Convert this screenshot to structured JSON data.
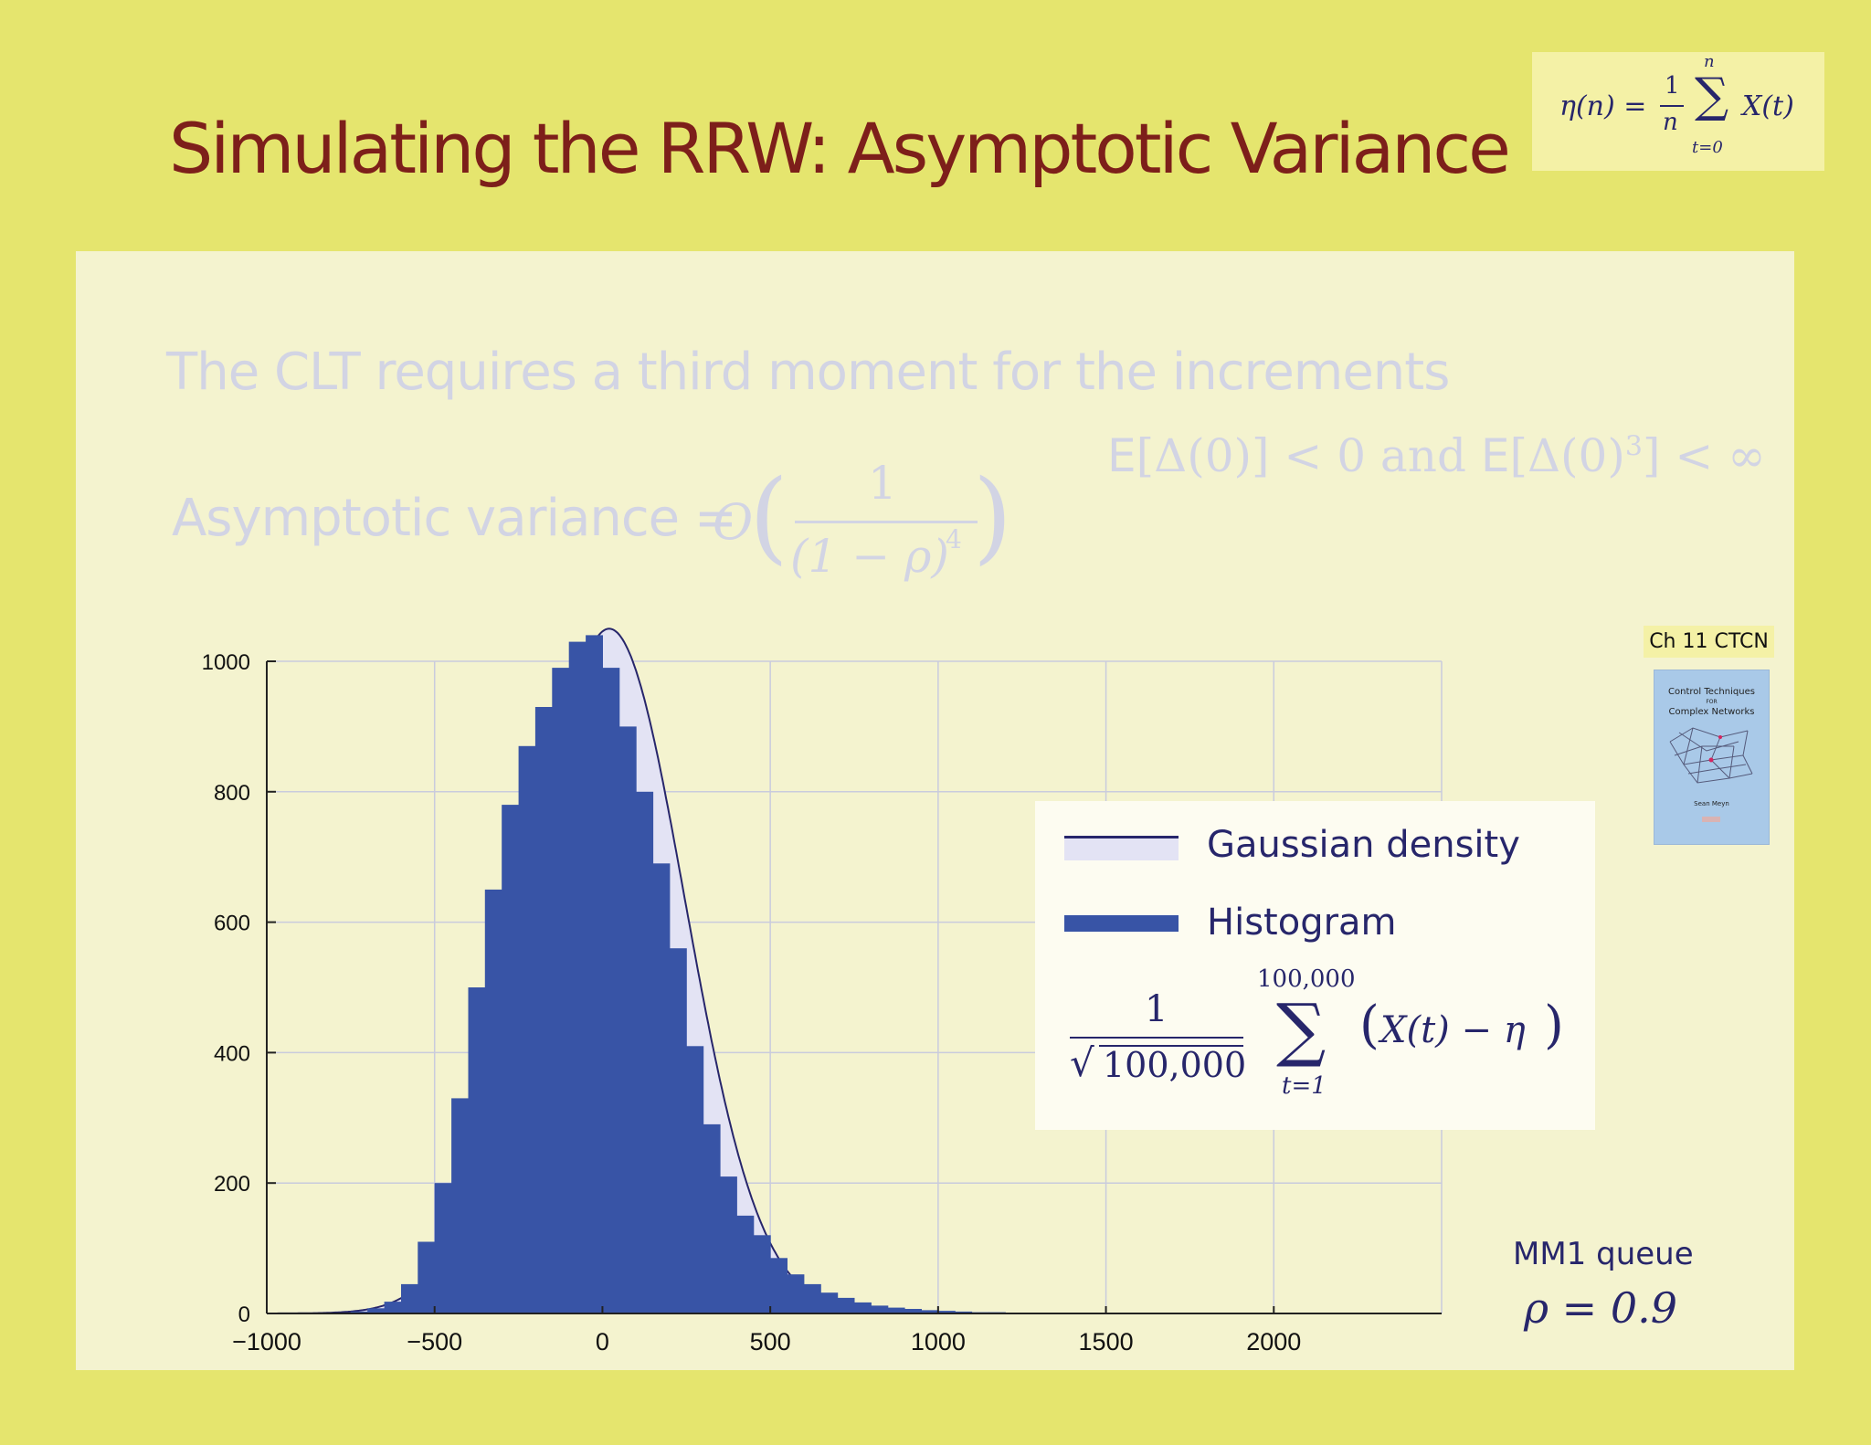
{
  "slide": {
    "title": "Simulating the RRW:  Asymptotic Variance",
    "header_formula": {
      "lhs": "η(n) =",
      "frac_num": "1",
      "frac_den": "n",
      "sum_upper": "n",
      "sum_lower": "t=0",
      "summand": "X(t)"
    },
    "clt_text": "The CLT requires a third moment for the increments",
    "moment_condition": {
      "part1": "E",
      "part2": "[Δ(0)] < 0 and ",
      "part3": "E",
      "part4": "[Δ(0)",
      "exp": "3",
      "part5": "] < ∞"
    },
    "variance_label": "Asymptotic variance =",
    "variance_expr": {
      "op": "O",
      "num": "1",
      "den": "(1 − ρ)",
      "den_exp": "4"
    },
    "book_tag": "Ch 11  CTCN",
    "book_title_1": "Control Techniques",
    "book_title_2": "FOR",
    "book_title_3": "Complex Networks",
    "book_author": "Sean Meyn",
    "queue_label": "MM1 queue",
    "rho_value": "ρ = 0.9"
  },
  "legend": {
    "gaussian": "Gaussian density",
    "histogram": "Histogram",
    "formula": {
      "num": "1",
      "den": "100,000",
      "sum_upper": "100,000",
      "sum_lower": "t=1",
      "body": "X(t) − η"
    }
  },
  "colors": {
    "title": "#7d1f1a",
    "histogram": "#3854a6",
    "gaussian_fill": "#e3e3f4",
    "gaussian_line": "#27266b",
    "grid": "#c9cbdd"
  },
  "chart_data": {
    "type": "bar",
    "title": "",
    "xlabel": "",
    "ylabel": "",
    "xlim": [
      -1000,
      2500
    ],
    "ylim": [
      0,
      1000
    ],
    "xticks": [
      -1000,
      -500,
      0,
      500,
      1000,
      1500,
      2000
    ],
    "xtick_labels": [
      "−1000",
      "−500",
      "0",
      "500",
      "1000",
      "1500",
      "2000"
    ],
    "yticks": [
      0,
      200,
      400,
      600,
      800,
      1000
    ],
    "ytick_labels": [
      "0",
      "200",
      "400",
      "600",
      "800",
      "1000"
    ],
    "grid": true,
    "legend_position": "right",
    "series": [
      {
        "type": "histogram",
        "bin_width": 50,
        "bins": [
          {
            "x": -800,
            "y": 0
          },
          {
            "x": -750,
            "y": 3
          },
          {
            "x": -700,
            "y": 8
          },
          {
            "x": -650,
            "y": 18
          },
          {
            "x": -600,
            "y": 45
          },
          {
            "x": -550,
            "y": 110
          },
          {
            "x": -500,
            "y": 200
          },
          {
            "x": -450,
            "y": 330
          },
          {
            "x": -400,
            "y": 500
          },
          {
            "x": -350,
            "y": 650
          },
          {
            "x": -300,
            "y": 780
          },
          {
            "x": -250,
            "y": 870
          },
          {
            "x": -200,
            "y": 930
          },
          {
            "x": -150,
            "y": 990
          },
          {
            "x": -100,
            "y": 1030
          },
          {
            "x": -50,
            "y": 1040
          },
          {
            "x": 0,
            "y": 990
          },
          {
            "x": 50,
            "y": 900
          },
          {
            "x": 100,
            "y": 800
          },
          {
            "x": 150,
            "y": 690
          },
          {
            "x": 200,
            "y": 560
          },
          {
            "x": 250,
            "y": 410
          },
          {
            "x": 300,
            "y": 290
          },
          {
            "x": 350,
            "y": 210
          },
          {
            "x": 400,
            "y": 150
          },
          {
            "x": 450,
            "y": 120
          },
          {
            "x": 500,
            "y": 85
          },
          {
            "x": 550,
            "y": 60
          },
          {
            "x": 600,
            "y": 45
          },
          {
            "x": 650,
            "y": 32
          },
          {
            "x": 700,
            "y": 24
          },
          {
            "x": 750,
            "y": 17
          },
          {
            "x": 800,
            "y": 12
          },
          {
            "x": 850,
            "y": 9
          },
          {
            "x": 900,
            "y": 7
          },
          {
            "x": 950,
            "y": 5
          },
          {
            "x": 1000,
            "y": 4
          },
          {
            "x": 1050,
            "y": 3
          },
          {
            "x": 1100,
            "y": 2
          },
          {
            "x": 1150,
            "y": 2
          },
          {
            "x": 1200,
            "y": 1
          },
          {
            "x": 1300,
            "y": 1
          },
          {
            "x": 1400,
            "y": 1
          },
          {
            "x": 1500,
            "y": 1
          },
          {
            "x": 1700,
            "y": 1
          },
          {
            "x": 2000,
            "y": 1
          },
          {
            "x": 2200,
            "y": 1
          }
        ]
      },
      {
        "type": "gaussian",
        "mean": 20,
        "sd": 225,
        "peak": 1050
      }
    ]
  }
}
